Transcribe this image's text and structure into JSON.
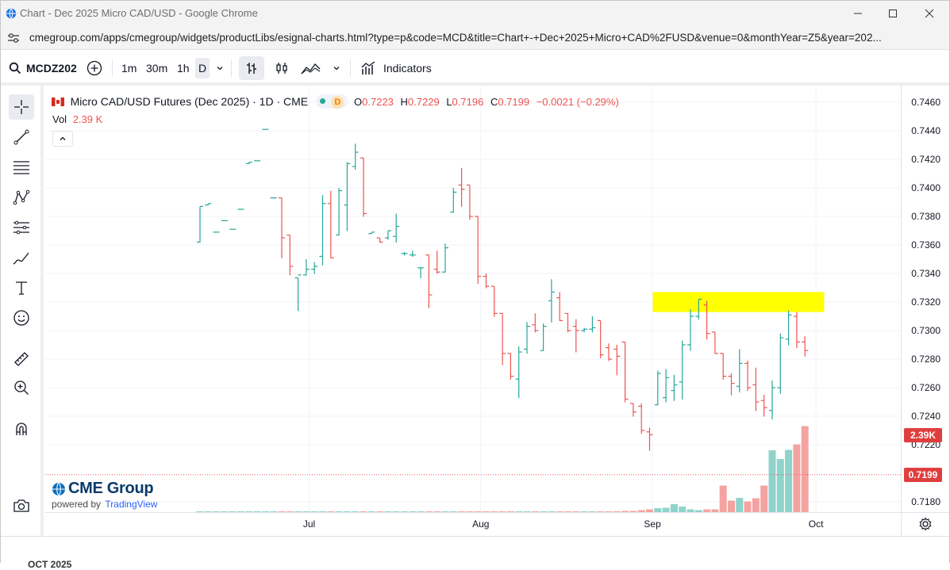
{
  "window": {
    "title": "Chart - Dec 2025 Micro CAD/USD - Google Chrome",
    "url": "cmegroup.com/apps/cmegroup/widgets/productLibs/esignal-charts.html?type=p&code=MCD&title=Chart+-+Dec+2025+Micro+CAD%2FUSD&venue=0&monthYear=Z5&year=202..."
  },
  "toolbar": {
    "symbol": "MCDZ202",
    "intervals": [
      "1m",
      "30m",
      "1h",
      "D"
    ],
    "indicators_label": "Indicators"
  },
  "legend": {
    "title": "Micro CAD/USD Futures (Dec 2025) · 1D · CME",
    "badge": "D",
    "o_label": "O",
    "o_value": "0.7223",
    "h_label": "H",
    "h_value": "0.7229",
    "l_label": "L",
    "l_value": "0.7196",
    "c_label": "C",
    "c_value": "0.7199",
    "change": "−0.0021 (−0.29%)",
    "vol_label": "Vol",
    "vol_value": "2.39 K"
  },
  "branding": {
    "logo_text": "CME Group",
    "powered_by": "powered by",
    "tradingview": "TradingView"
  },
  "price_tags": {
    "volume": "2.39K",
    "last_price": "0.7199"
  },
  "bottom_text": "OCT 2025",
  "colors": {
    "up": "#26a69a",
    "down": "#ef5350",
    "up_vol": "#8fd3cb",
    "down_vol": "#f5a3a1",
    "highlight": "#ffff00",
    "accent": "#2962ff"
  },
  "chart_data": {
    "type": "ohlc",
    "title": "Micro CAD/USD Futures (Dec 2025) · 1D · CME",
    "y_ticks": [
      "0.7460",
      "0.7440",
      "0.7420",
      "0.7400",
      "0.7380",
      "0.7360",
      "0.7340",
      "0.7320",
      "0.7300",
      "0.7280",
      "0.7260",
      "0.7240",
      "0.7220",
      "0.7180"
    ],
    "ylim": [
      0.717,
      0.747
    ],
    "x_ticks": [
      {
        "label": "Jul",
        "index": 15
      },
      {
        "label": "Aug",
        "index": 36
      },
      {
        "label": "Sep",
        "index": 57
      },
      {
        "label": "Oct",
        "index": 77
      }
    ],
    "bars": [
      {
        "o": 0.7362,
        "h": 0.7387,
        "l": 0.7362,
        "c": 0.7387,
        "v": 0.01
      },
      {
        "o": 0.7388,
        "h": 0.7389,
        "l": 0.7388,
        "c": 0.7389,
        "v": 0.01
      },
      {
        "o": 0.7369,
        "h": 0.7369,
        "l": 0.7369,
        "c": 0.7369,
        "v": 0.01
      },
      {
        "o": 0.7377,
        "h": 0.7377,
        "l": 0.7377,
        "c": 0.7377,
        "v": 0.01
      },
      {
        "o": 0.7371,
        "h": 0.7371,
        "l": 0.7371,
        "c": 0.7371,
        "v": 0.01
      },
      {
        "o": 0.7385,
        "h": 0.7385,
        "l": 0.7385,
        "c": 0.7385,
        "v": 0.01
      },
      {
        "o": 0.7417,
        "h": 0.7418,
        "l": 0.7417,
        "c": 0.7418,
        "v": 0.01
      },
      {
        "o": 0.7419,
        "h": 0.7419,
        "l": 0.7419,
        "c": 0.7419,
        "v": 0.01
      },
      {
        "o": 0.7441,
        "h": 0.7441,
        "l": 0.7441,
        "c": 0.7441,
        "v": 0.01
      },
      {
        "o": 0.7393,
        "h": 0.7393,
        "l": 0.7393,
        "c": 0.7393,
        "v": 0.01
      },
      {
        "o": 0.7393,
        "h": 0.7393,
        "l": 0.7351,
        "c": 0.7365,
        "v": 0.02
      },
      {
        "o": 0.7367,
        "h": 0.7367,
        "l": 0.7339,
        "c": 0.7345,
        "v": 0.02
      },
      {
        "o": 0.7337,
        "h": 0.7337,
        "l": 0.7314,
        "c": 0.7339,
        "v": 0.02
      },
      {
        "o": 0.7339,
        "h": 0.735,
        "l": 0.7339,
        "c": 0.7343,
        "v": 0.01
      },
      {
        "o": 0.7343,
        "h": 0.7348,
        "l": 0.734,
        "c": 0.7345,
        "v": 0.01
      },
      {
        "o": 0.7352,
        "h": 0.7395,
        "l": 0.7346,
        "c": 0.7389,
        "v": 0.01
      },
      {
        "o": 0.7389,
        "h": 0.7398,
        "l": 0.7351,
        "c": 0.7351,
        "v": 0.01
      },
      {
        "o": 0.7367,
        "h": 0.74,
        "l": 0.7367,
        "c": 0.7398,
        "v": 0.02
      },
      {
        "o": 0.7388,
        "h": 0.7418,
        "l": 0.737,
        "c": 0.7417,
        "v": 0.02
      },
      {
        "o": 0.7415,
        "h": 0.7431,
        "l": 0.7413,
        "c": 0.7425,
        "v": 0.02
      },
      {
        "o": 0.7421,
        "h": 0.7421,
        "l": 0.738,
        "c": 0.7382,
        "v": 0.01
      },
      {
        "o": 0.7368,
        "h": 0.7369,
        "l": 0.7368,
        "c": 0.7369,
        "v": 0.01
      },
      {
        "o": 0.7365,
        "h": 0.7365,
        "l": 0.7362,
        "c": 0.7362,
        "v": 0.01
      },
      {
        "o": 0.7365,
        "h": 0.737,
        "l": 0.7364,
        "c": 0.737,
        "v": 0.01
      },
      {
        "o": 0.7366,
        "h": 0.7382,
        "l": 0.7362,
        "c": 0.7373,
        "v": 0.01
      },
      {
        "o": 0.7354,
        "h": 0.7355,
        "l": 0.7353,
        "c": 0.7354,
        "v": 0.01
      },
      {
        "o": 0.7353,
        "h": 0.7356,
        "l": 0.7352,
        "c": 0.7353,
        "v": 0.01
      },
      {
        "o": 0.7344,
        "h": 0.7344,
        "l": 0.7337,
        "c": 0.7344,
        "v": 0.01
      },
      {
        "o": 0.7353,
        "h": 0.7353,
        "l": 0.7316,
        "c": 0.7325,
        "v": 0.01
      },
      {
        "o": 0.7343,
        "h": 0.7356,
        "l": 0.734,
        "c": 0.7341,
        "v": 0.01
      },
      {
        "o": 0.7341,
        "h": 0.7361,
        "l": 0.7341,
        "c": 0.7358,
        "v": 0.01
      },
      {
        "o": 0.7383,
        "h": 0.74,
        "l": 0.7383,
        "c": 0.7397,
        "v": 0.01
      },
      {
        "o": 0.7402,
        "h": 0.7414,
        "l": 0.7387,
        "c": 0.7399,
        "v": 0.02
      },
      {
        "o": 0.7402,
        "h": 0.7402,
        "l": 0.7378,
        "c": 0.738,
        "v": 0.01
      },
      {
        "o": 0.738,
        "h": 0.738,
        "l": 0.7333,
        "c": 0.7338,
        "v": 0.01
      },
      {
        "o": 0.7338,
        "h": 0.734,
        "l": 0.733,
        "c": 0.7331,
        "v": 0.01
      },
      {
        "o": 0.7331,
        "h": 0.7331,
        "l": 0.731,
        "c": 0.7312,
        "v": 0.01
      },
      {
        "o": 0.7312,
        "h": 0.7312,
        "l": 0.7276,
        "c": 0.7284,
        "v": 0.01
      },
      {
        "o": 0.7284,
        "h": 0.7284,
        "l": 0.7266,
        "c": 0.7268,
        "v": 0.02
      },
      {
        "o": 0.7266,
        "h": 0.7289,
        "l": 0.7253,
        "c": 0.7285,
        "v": 0.02
      },
      {
        "o": 0.7287,
        "h": 0.7306,
        "l": 0.7284,
        "c": 0.7303,
        "v": 0.02
      },
      {
        "o": 0.7304,
        "h": 0.7312,
        "l": 0.7299,
        "c": 0.73,
        "v": 0.01
      },
      {
        "o": 0.7286,
        "h": 0.7305,
        "l": 0.7286,
        "c": 0.7303,
        "v": 0.02
      },
      {
        "o": 0.7321,
        "h": 0.7336,
        "l": 0.7306,
        "c": 0.7327,
        "v": 0.01
      },
      {
        "o": 0.7323,
        "h": 0.7327,
        "l": 0.7307,
        "c": 0.7307,
        "v": 0.01
      },
      {
        "o": 0.7312,
        "h": 0.7312,
        "l": 0.7299,
        "c": 0.73,
        "v": 0.01
      },
      {
        "o": 0.7303,
        "h": 0.7308,
        "l": 0.7285,
        "c": 0.73,
        "v": 0.01
      },
      {
        "o": 0.73,
        "h": 0.7302,
        "l": 0.7299,
        "c": 0.7301,
        "v": 0.01
      },
      {
        "o": 0.7301,
        "h": 0.731,
        "l": 0.7299,
        "c": 0.7302,
        "v": 0.01
      },
      {
        "o": 0.7307,
        "h": 0.7307,
        "l": 0.7281,
        "c": 0.7283,
        "v": 0.02
      },
      {
        "o": 0.7288,
        "h": 0.7291,
        "l": 0.7279,
        "c": 0.728,
        "v": 0.02
      },
      {
        "o": 0.7287,
        "h": 0.729,
        "l": 0.7269,
        "c": 0.7282,
        "v": 0.02
      },
      {
        "o": 0.7292,
        "h": 0.7292,
        "l": 0.725,
        "c": 0.7252,
        "v": 0.03
      },
      {
        "o": 0.7249,
        "h": 0.7249,
        "l": 0.724,
        "c": 0.7243,
        "v": 0.03
      },
      {
        "o": 0.7247,
        "h": 0.7249,
        "l": 0.7228,
        "c": 0.723,
        "v": 0.05
      },
      {
        "o": 0.7229,
        "h": 0.7232,
        "l": 0.7216,
        "c": 0.7227,
        "v": 0.07
      },
      {
        "o": 0.7248,
        "h": 0.7272,
        "l": 0.7248,
        "c": 0.727,
        "v": 0.1
      },
      {
        "o": 0.7253,
        "h": 0.7273,
        "l": 0.725,
        "c": 0.7267,
        "v": 0.11
      },
      {
        "o": 0.7258,
        "h": 0.7269,
        "l": 0.7251,
        "c": 0.7262,
        "v": 0.2
      },
      {
        "o": 0.7264,
        "h": 0.7293,
        "l": 0.7252,
        "c": 0.729,
        "v": 0.14
      },
      {
        "o": 0.729,
        "h": 0.7315,
        "l": 0.7286,
        "c": 0.731,
        "v": 0.07
      },
      {
        "o": 0.731,
        "h": 0.7322,
        "l": 0.7308,
        "c": 0.7322,
        "v": 0.05
      },
      {
        "o": 0.7318,
        "h": 0.7321,
        "l": 0.7294,
        "c": 0.7298,
        "v": 0.07
      },
      {
        "o": 0.7299,
        "h": 0.7299,
        "l": 0.7284,
        "c": 0.7284,
        "v": 0.07
      },
      {
        "o": 0.7284,
        "h": 0.7284,
        "l": 0.7266,
        "c": 0.7268,
        "v": 0.67
      },
      {
        "o": 0.7268,
        "h": 0.727,
        "l": 0.7255,
        "c": 0.7263,
        "v": 0.29
      },
      {
        "o": 0.7261,
        "h": 0.7287,
        "l": 0.7257,
        "c": 0.7277,
        "v": 0.36
      },
      {
        "o": 0.7277,
        "h": 0.7279,
        "l": 0.7258,
        "c": 0.726,
        "v": 0.27
      },
      {
        "o": 0.7262,
        "h": 0.7274,
        "l": 0.7244,
        "c": 0.725,
        "v": 0.35
      },
      {
        "o": 0.7251,
        "h": 0.7255,
        "l": 0.724,
        "c": 0.7246,
        "v": 0.67
      },
      {
        "o": 0.7244,
        "h": 0.7265,
        "l": 0.7238,
        "c": 0.726,
        "v": 1.56
      },
      {
        "o": 0.726,
        "h": 0.7298,
        "l": 0.7256,
        "c": 0.7295,
        "v": 1.34
      },
      {
        "o": 0.7294,
        "h": 0.7314,
        "l": 0.729,
        "c": 0.7311,
        "v": 1.57
      },
      {
        "o": 0.731,
        "h": 0.7313,
        "l": 0.7288,
        "c": 0.7292,
        "v": 1.71
      },
      {
        "o": 0.7292,
        "h": 0.7296,
        "l": 0.7282,
        "c": 0.7286,
        "v": 2.17
      }
    ]
  },
  "annotations": {
    "highlight_zone": {
      "y_low": 0.7313,
      "y_high": 0.7327,
      "from_index": 55,
      "to_index": 75
    }
  }
}
